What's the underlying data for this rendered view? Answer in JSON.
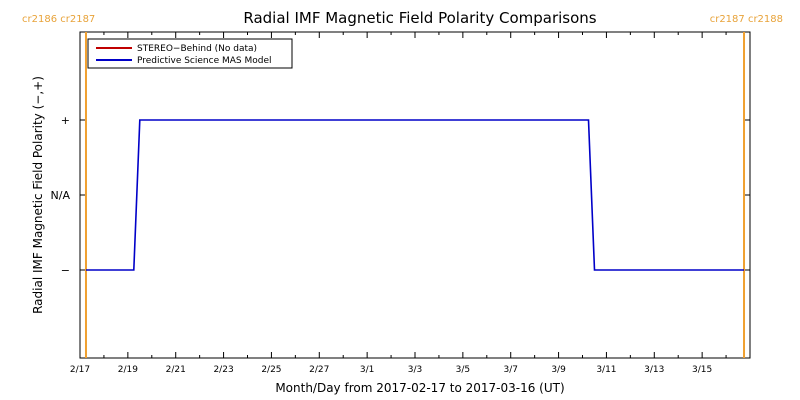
{
  "chart_data": {
    "type": "line",
    "title": "Radial IMF Magnetic Field Polarity Comparisons",
    "xlabel": "Month/Day from 2017-02-17 to 2017-03-16 (UT)",
    "ylabel": "Radial IMF Magnetic Field Polarity (−,+)",
    "x_range": [
      "2017-02-17",
      "2017-03-17"
    ],
    "x_ticks": [
      "2/17",
      "2/19",
      "2/21",
      "2/23",
      "2/25",
      "2/27",
      "3/1",
      "3/3",
      "3/5",
      "3/7",
      "3/9",
      "3/11",
      "3/13",
      "3/15"
    ],
    "y_ticks": [
      "−",
      "N/A",
      "+"
    ],
    "legend_placement": "top-left",
    "legend": [
      {
        "name": "STEREO−Behind (No data)",
        "color": "#c00000"
      },
      {
        "name": "Predictive Science MAS Model",
        "color": "#0000c8"
      }
    ],
    "series": [
      {
        "name": "Predictive Science MAS Model",
        "color": "#0000c8",
        "x": [
          "2017-02-17 06:00",
          "2017-02-19 06:00",
          "2017-02-19 12:00",
          "2017-03-10 06:00",
          "2017-03-10 12:00",
          "2017-03-16 18:00"
        ],
        "y": [
          "−",
          "−",
          "+",
          "+",
          "−",
          "−"
        ]
      }
    ],
    "carrington_markers": [
      {
        "date": "2017-02-17 06:00",
        "label": "cr2186 cr2187",
        "label_position": "left",
        "color": "#f0a030"
      },
      {
        "date": "2017-03-16 18:00",
        "label": "cr2187 cr2188",
        "label_position": "right",
        "color": "#f0a030"
      }
    ]
  }
}
